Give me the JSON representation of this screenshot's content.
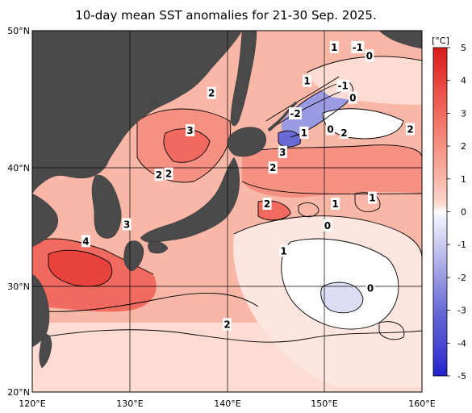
{
  "title": "10-day mean SST anomalies for 21-30 Sep. 2025.",
  "map": {
    "lon_range": [
      120,
      160
    ],
    "lat_range": [
      20,
      50
    ],
    "land_color": "#4a4a4a",
    "lon_ticks": [
      "120°E",
      "130°E",
      "140°E",
      "150°E",
      "160°E"
    ],
    "lat_ticks": [
      "50°N",
      "40°N",
      "30°N",
      "20°N"
    ]
  },
  "colorbar": {
    "unit": "[°C]",
    "ticks": [
      "5",
      "4",
      "3",
      "2",
      "1",
      "0",
      "-1",
      "-2",
      "-3",
      "-4",
      "-5"
    ],
    "colors": [
      "#d7191c",
      "#e8423d",
      "#f06a5f",
      "#f59183",
      "#f9b7a8",
      "#fcdcd3",
      "#ffffff",
      "#c9cbf0",
      "#9a9be3",
      "#6a6ad6",
      "#3b3bd0"
    ]
  },
  "contour_labels": [
    {
      "text": "1",
      "lon": 151.0,
      "lat": 48.6
    },
    {
      "text": "-1",
      "lon": 153.4,
      "lat": 48.6
    },
    {
      "text": "0",
      "lon": 154.6,
      "lat": 47.9
    },
    {
      "text": "1",
      "lon": 148.2,
      "lat": 45.8
    },
    {
      "text": "-1",
      "lon": 151.9,
      "lat": 45.4
    },
    {
      "text": "0",
      "lon": 152.9,
      "lat": 44.4
    },
    {
      "text": "2",
      "lon": 138.4,
      "lat": 44.8
    },
    {
      "text": "-2",
      "lon": 147.0,
      "lat": 43.1
    },
    {
      "text": "1",
      "lon": 147.9,
      "lat": 41.5
    },
    {
      "text": "0",
      "lon": 150.6,
      "lat": 41.8
    },
    {
      "text": "2",
      "lon": 152.0,
      "lat": 41.5
    },
    {
      "text": "2",
      "lon": 158.8,
      "lat": 41.8
    },
    {
      "text": "3",
      "lon": 136.2,
      "lat": 41.7
    },
    {
      "text": "3",
      "lon": 145.7,
      "lat": 39.9
    },
    {
      "text": "2",
      "lon": 144.7,
      "lat": 38.6
    },
    {
      "text": "2",
      "lon": 133.0,
      "lat": 38.0
    },
    {
      "text": "2",
      "lon": 134.0,
      "lat": 38.1
    },
    {
      "text": "2",
      "lon": 144.1,
      "lat": 35.6
    },
    {
      "text": "1",
      "lon": 151.1,
      "lat": 35.6
    },
    {
      "text": "1",
      "lon": 154.9,
      "lat": 36.1
    },
    {
      "text": "0",
      "lon": 150.3,
      "lat": 33.8
    },
    {
      "text": "3",
      "lon": 129.7,
      "lat": 33.9
    },
    {
      "text": "4",
      "lon": 125.5,
      "lat": 32.5
    },
    {
      "text": "1",
      "lon": 145.8,
      "lat": 31.7
    },
    {
      "text": "0",
      "lon": 154.7,
      "lat": 28.6
    },
    {
      "text": "2",
      "lon": 140.0,
      "lat": 25.6
    }
  ]
}
